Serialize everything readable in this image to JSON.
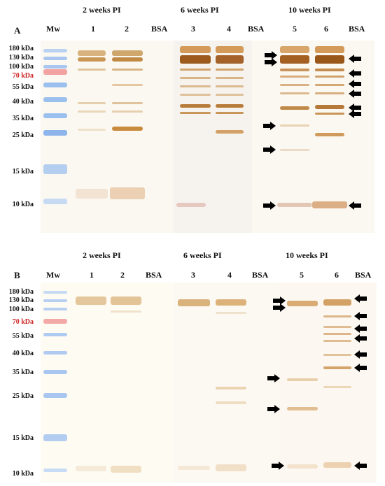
{
  "panels": [
    {
      "label": "A",
      "groups": [
        "2 weeks PI",
        "6 weeks PI",
        "10 weeks PI"
      ],
      "lanes": [
        "Mw",
        "1",
        "2",
        "BSA",
        "3",
        "4",
        "BSA",
        "5",
        "6",
        "BSA"
      ],
      "ladder": [
        "180 kDa",
        "130 kDa",
        "100 kDa",
        "70 kDa",
        "55 kDa",
        "40 kDa",
        "35 kDa",
        "25 kDa",
        "15 kDa",
        "10 kDa"
      ]
    },
    {
      "label": "B",
      "groups": [
        "2 weeks PI",
        "6 weeks PI",
        "10 weeks PI"
      ],
      "lanes": [
        "Mw",
        "1",
        "2",
        "BSA",
        "3",
        "4",
        "BSA",
        "5",
        "6",
        "BSA"
      ],
      "ladder": [
        "180 kDa",
        "130 kDa",
        "100 kDa",
        "70 kDa",
        "55 kDa",
        "40 kDa",
        "35 kDa",
        "25 kDa",
        "15 kDa",
        "10 kDa"
      ]
    }
  ],
  "colors": {
    "band_strong": "#a5601c",
    "band_medium": "#c68a44",
    "band_light": "#dcb682",
    "marker_blue": "#9cc0ee",
    "marker_red": "#f08f8f",
    "arrow": "#000000"
  },
  "icons": [
    "arrow-right-icon",
    "arrow-left-icon"
  ]
}
